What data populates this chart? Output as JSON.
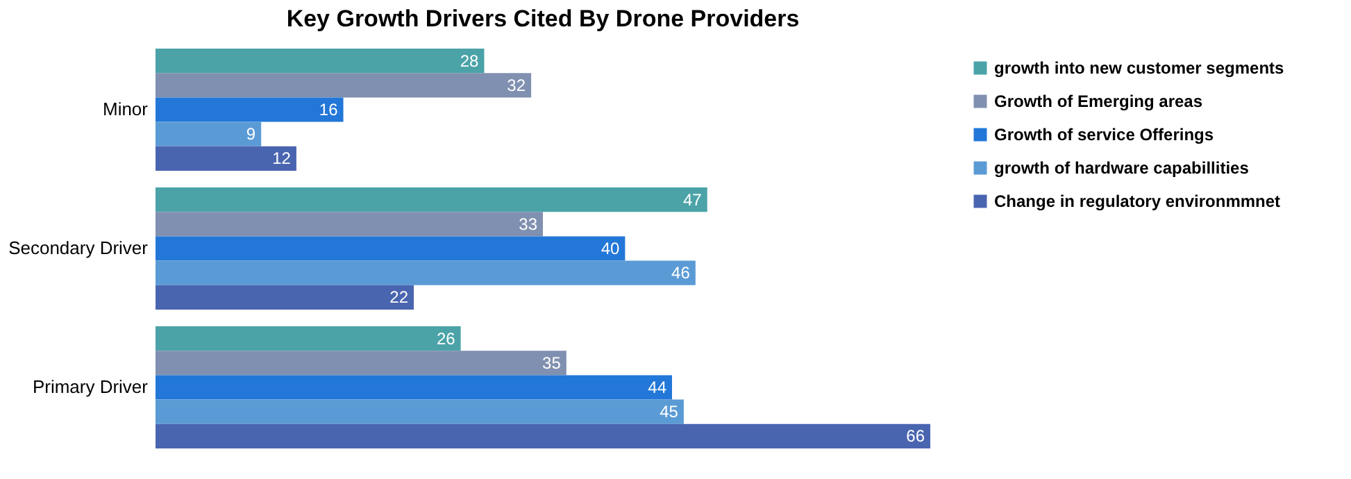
{
  "chart_data": {
    "type": "bar",
    "orientation": "horizontal",
    "title": "Key Growth Drivers Cited By Drone Providers",
    "categories": [
      "Minor",
      "Secondary Driver",
      "Primary Driver"
    ],
    "series": [
      {
        "name": "growth into new customer segments",
        "color": "#4ba3a8",
        "values": [
          28,
          47,
          26
        ]
      },
      {
        "name": "Growth of Emerging areas",
        "color": "#8090b0",
        "values": [
          32,
          33,
          35
        ]
      },
      {
        "name": "Growth of service Offerings",
        "color": "#2277d8",
        "values": [
          16,
          40,
          44
        ]
      },
      {
        "name": "growth of hardware capabillities",
        "color": "#5b9bd5",
        "values": [
          9,
          46,
          45
        ]
      },
      {
        "name": "Change in regulatory environmmnet",
        "color": "#4a65b0",
        "values": [
          12,
          22,
          66
        ]
      }
    ],
    "data_labels": true,
    "legend": "right",
    "grid": false
  }
}
